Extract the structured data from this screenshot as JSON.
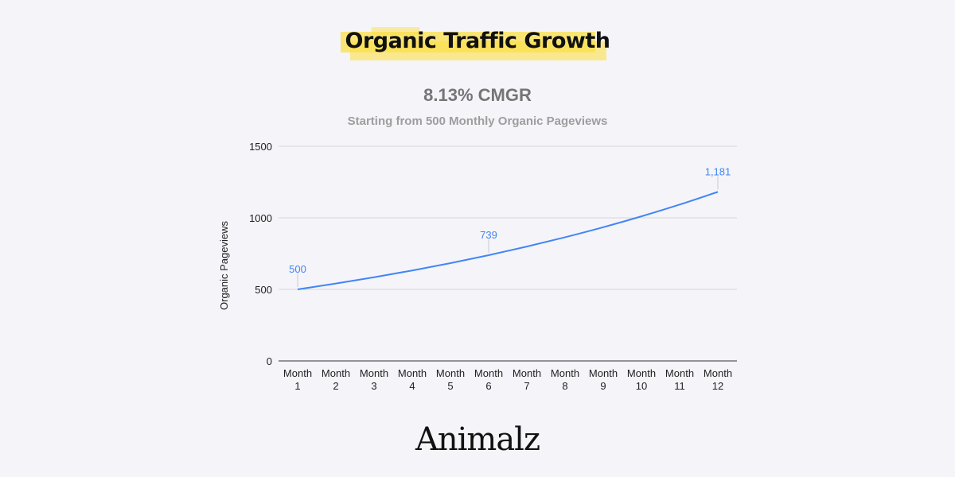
{
  "header": {
    "title": "Organic Traffic Growth",
    "cmgr": "8.13% CMGR",
    "description": "Starting from 500 Monthly Organic Pageviews"
  },
  "brand": {
    "logo_text": "Animalz"
  },
  "colors": {
    "line": "#4285f4",
    "highlight": "#fbe04a"
  },
  "chart_data": {
    "type": "line",
    "title": "8.13% CMGR",
    "subtitle": "Starting from 500 Monthly Organic Pageviews",
    "xlabel": "",
    "ylabel": "Organic Pageviews",
    "categories": [
      [
        "Month",
        "1"
      ],
      [
        "Month",
        "2"
      ],
      [
        "Month",
        "3"
      ],
      [
        "Month",
        "4"
      ],
      [
        "Month",
        "5"
      ],
      [
        "Month",
        "6"
      ],
      [
        "Month",
        "7"
      ],
      [
        "Month",
        "8"
      ],
      [
        "Month",
        "9"
      ],
      [
        "Month",
        "10"
      ],
      [
        "Month",
        "11"
      ],
      [
        "Month",
        "12"
      ]
    ],
    "series": [
      {
        "name": "Organic Pageviews",
        "values": [
          500,
          540.7,
          584.6,
          632.1,
          683.5,
          739.1,
          799.2,
          864.2,
          934.4,
          1010.4,
          1092.5,
          1181.3
        ]
      }
    ],
    "data_labels": [
      {
        "index": 0,
        "text": "500"
      },
      {
        "index": 5,
        "text": "739"
      },
      {
        "index": 11,
        "text": "1,181"
      }
    ],
    "ylim": [
      0,
      1500
    ],
    "yticks": [
      "0",
      "500",
      "1000",
      "1500"
    ],
    "grid": true
  }
}
